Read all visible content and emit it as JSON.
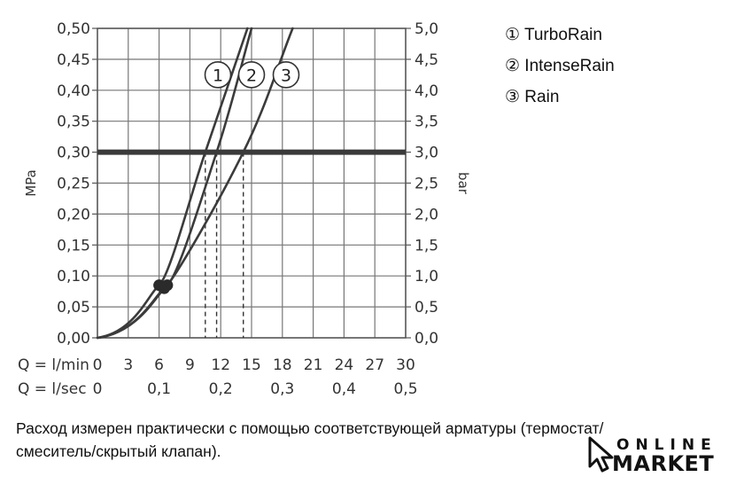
{
  "chart_data": {
    "type": "line",
    "ylabel_left": "MPa",
    "ylabel_right": "bar",
    "x_prefix_1": "Q = l/min",
    "x_prefix_2": "Q = l/sec",
    "xlim": [
      0,
      30
    ],
    "ylim": [
      0,
      0.5
    ],
    "x_ticks_lmin": [
      "0",
      "3",
      "6",
      "9",
      "12",
      "15",
      "18",
      "21",
      "24",
      "27",
      "30"
    ],
    "x_ticks_lsec": [
      "0",
      "0,1",
      "0,2",
      "0,3",
      "0,4",
      "0,5"
    ],
    "x_ticks_lsec_values": [
      0,
      0.1,
      0.2,
      0.3,
      0.4,
      0.5
    ],
    "y_ticks_mpa": [
      "0,00",
      "0,05",
      "0,10",
      "0,15",
      "0,20",
      "0,25",
      "0,30",
      "0,35",
      "0,40",
      "0,45",
      "0,50"
    ],
    "y_ticks_bar": [
      "0,0",
      "0,5",
      "1,0",
      "1,5",
      "2,0",
      "2,5",
      "3,0",
      "3,5",
      "4,0",
      "4,5",
      "5,0"
    ],
    "grid": true,
    "reference_line": {
      "y": 0.3
    },
    "series": [
      {
        "name": "1",
        "x": [
          0,
          6.0,
          10.5,
          14.6
        ],
        "y": [
          0,
          0.085,
          0.3,
          0.5
        ],
        "flow_at_ref": 10.5
      },
      {
        "name": "2",
        "x": [
          0,
          6.8,
          11.6,
          15.0
        ],
        "y": [
          0,
          0.085,
          0.3,
          0.5
        ],
        "flow_at_ref": 11.6
      },
      {
        "name": "3",
        "x": [
          0,
          6.5,
          14.2,
          19.0
        ],
        "y": [
          0,
          0.08,
          0.3,
          0.5
        ],
        "flow_at_ref": 14.2
      }
    ],
    "legend": [
      "① TurboRain",
      "② IntenseRain",
      "③ Rain"
    ]
  },
  "caption_line1": "Расход измерен практически с помощью соответствующей арматуры (термостат/",
  "caption_line2": "смеситель/скрытый клапан).",
  "logo": {
    "line1": "ONLINE",
    "line2": "MARKET"
  }
}
